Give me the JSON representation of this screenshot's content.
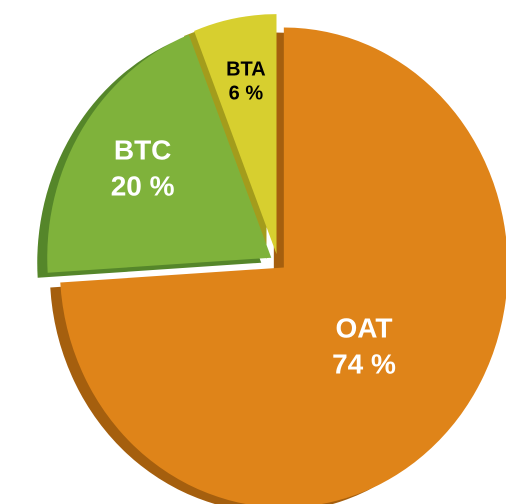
{
  "chart_data": {
    "type": "pie",
    "categories": [
      "OAT",
      "BTC",
      "BTA"
    ],
    "values": [
      74,
      20,
      6
    ],
    "value_labels": [
      "74 %",
      "20 %",
      "6 %"
    ],
    "colors": [
      "#df8419",
      "#7fb23b",
      "#d7cf2f"
    ],
    "side_colors": [
      "#a55f0e",
      "#55862a",
      "#a39c1c"
    ],
    "label_colors": [
      "#ffffff",
      "#ffffff",
      "#000000"
    ]
  }
}
